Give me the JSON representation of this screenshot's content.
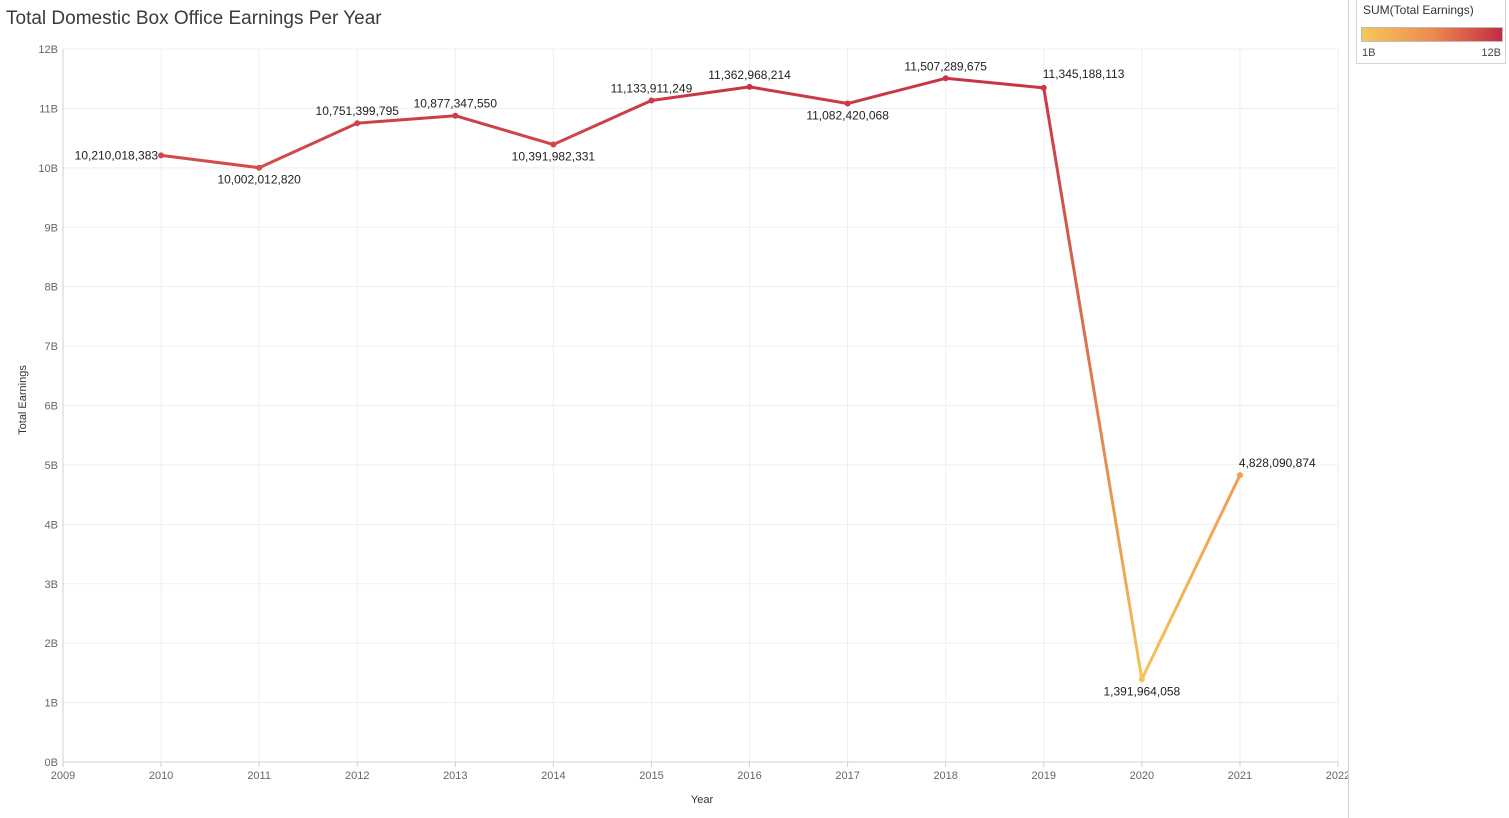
{
  "chart_data": {
    "type": "line",
    "title": "Total Domestic Box Office Earnings Per Year",
    "xlabel": "Year",
    "ylabel": "Total Earnings",
    "x": [
      2010,
      2011,
      2012,
      2013,
      2014,
      2015,
      2016,
      2017,
      2018,
      2019,
      2020,
      2021
    ],
    "values": [
      10210018383,
      10002012820,
      10751399795,
      10877347550,
      10391982331,
      11133911249,
      11362968214,
      11082420068,
      11507289675,
      11345188113,
      1391964058,
      4828090874
    ],
    "data_labels": [
      "10,210,018,383",
      "10,002,012,820",
      "10,751,399,795",
      "10,877,347,550",
      "10,391,982,331",
      "11,133,911,249",
      "11,362,968,214",
      "11,082,420,068",
      "11,507,289,675",
      "11,345,188,113",
      "1,391,964,058",
      "4,828,090,874"
    ],
    "xlim": [
      2009,
      2022
    ],
    "ylim": [
      0,
      12000000000
    ],
    "x_ticks": [
      "2009",
      "2010",
      "2011",
      "2012",
      "2013",
      "2014",
      "2015",
      "2016",
      "2017",
      "2018",
      "2019",
      "2020",
      "2021",
      "2022"
    ],
    "y_ticks": [
      "0B",
      "1B",
      "2B",
      "3B",
      "4B",
      "5B",
      "6B",
      "7B",
      "8B",
      "9B",
      "10B",
      "11B",
      "12B"
    ],
    "grid": true,
    "legend": {
      "title": "SUM(Total Earnings)",
      "type": "color-gradient",
      "min_label": "1B",
      "max_label": "12B",
      "min_value": 1000000000,
      "max_value": 12000000000,
      "color_low": "#f5c75b",
      "color_mid": "#ee8a4f",
      "color_high": "#c32b45",
      "placement": "top-right"
    }
  }
}
